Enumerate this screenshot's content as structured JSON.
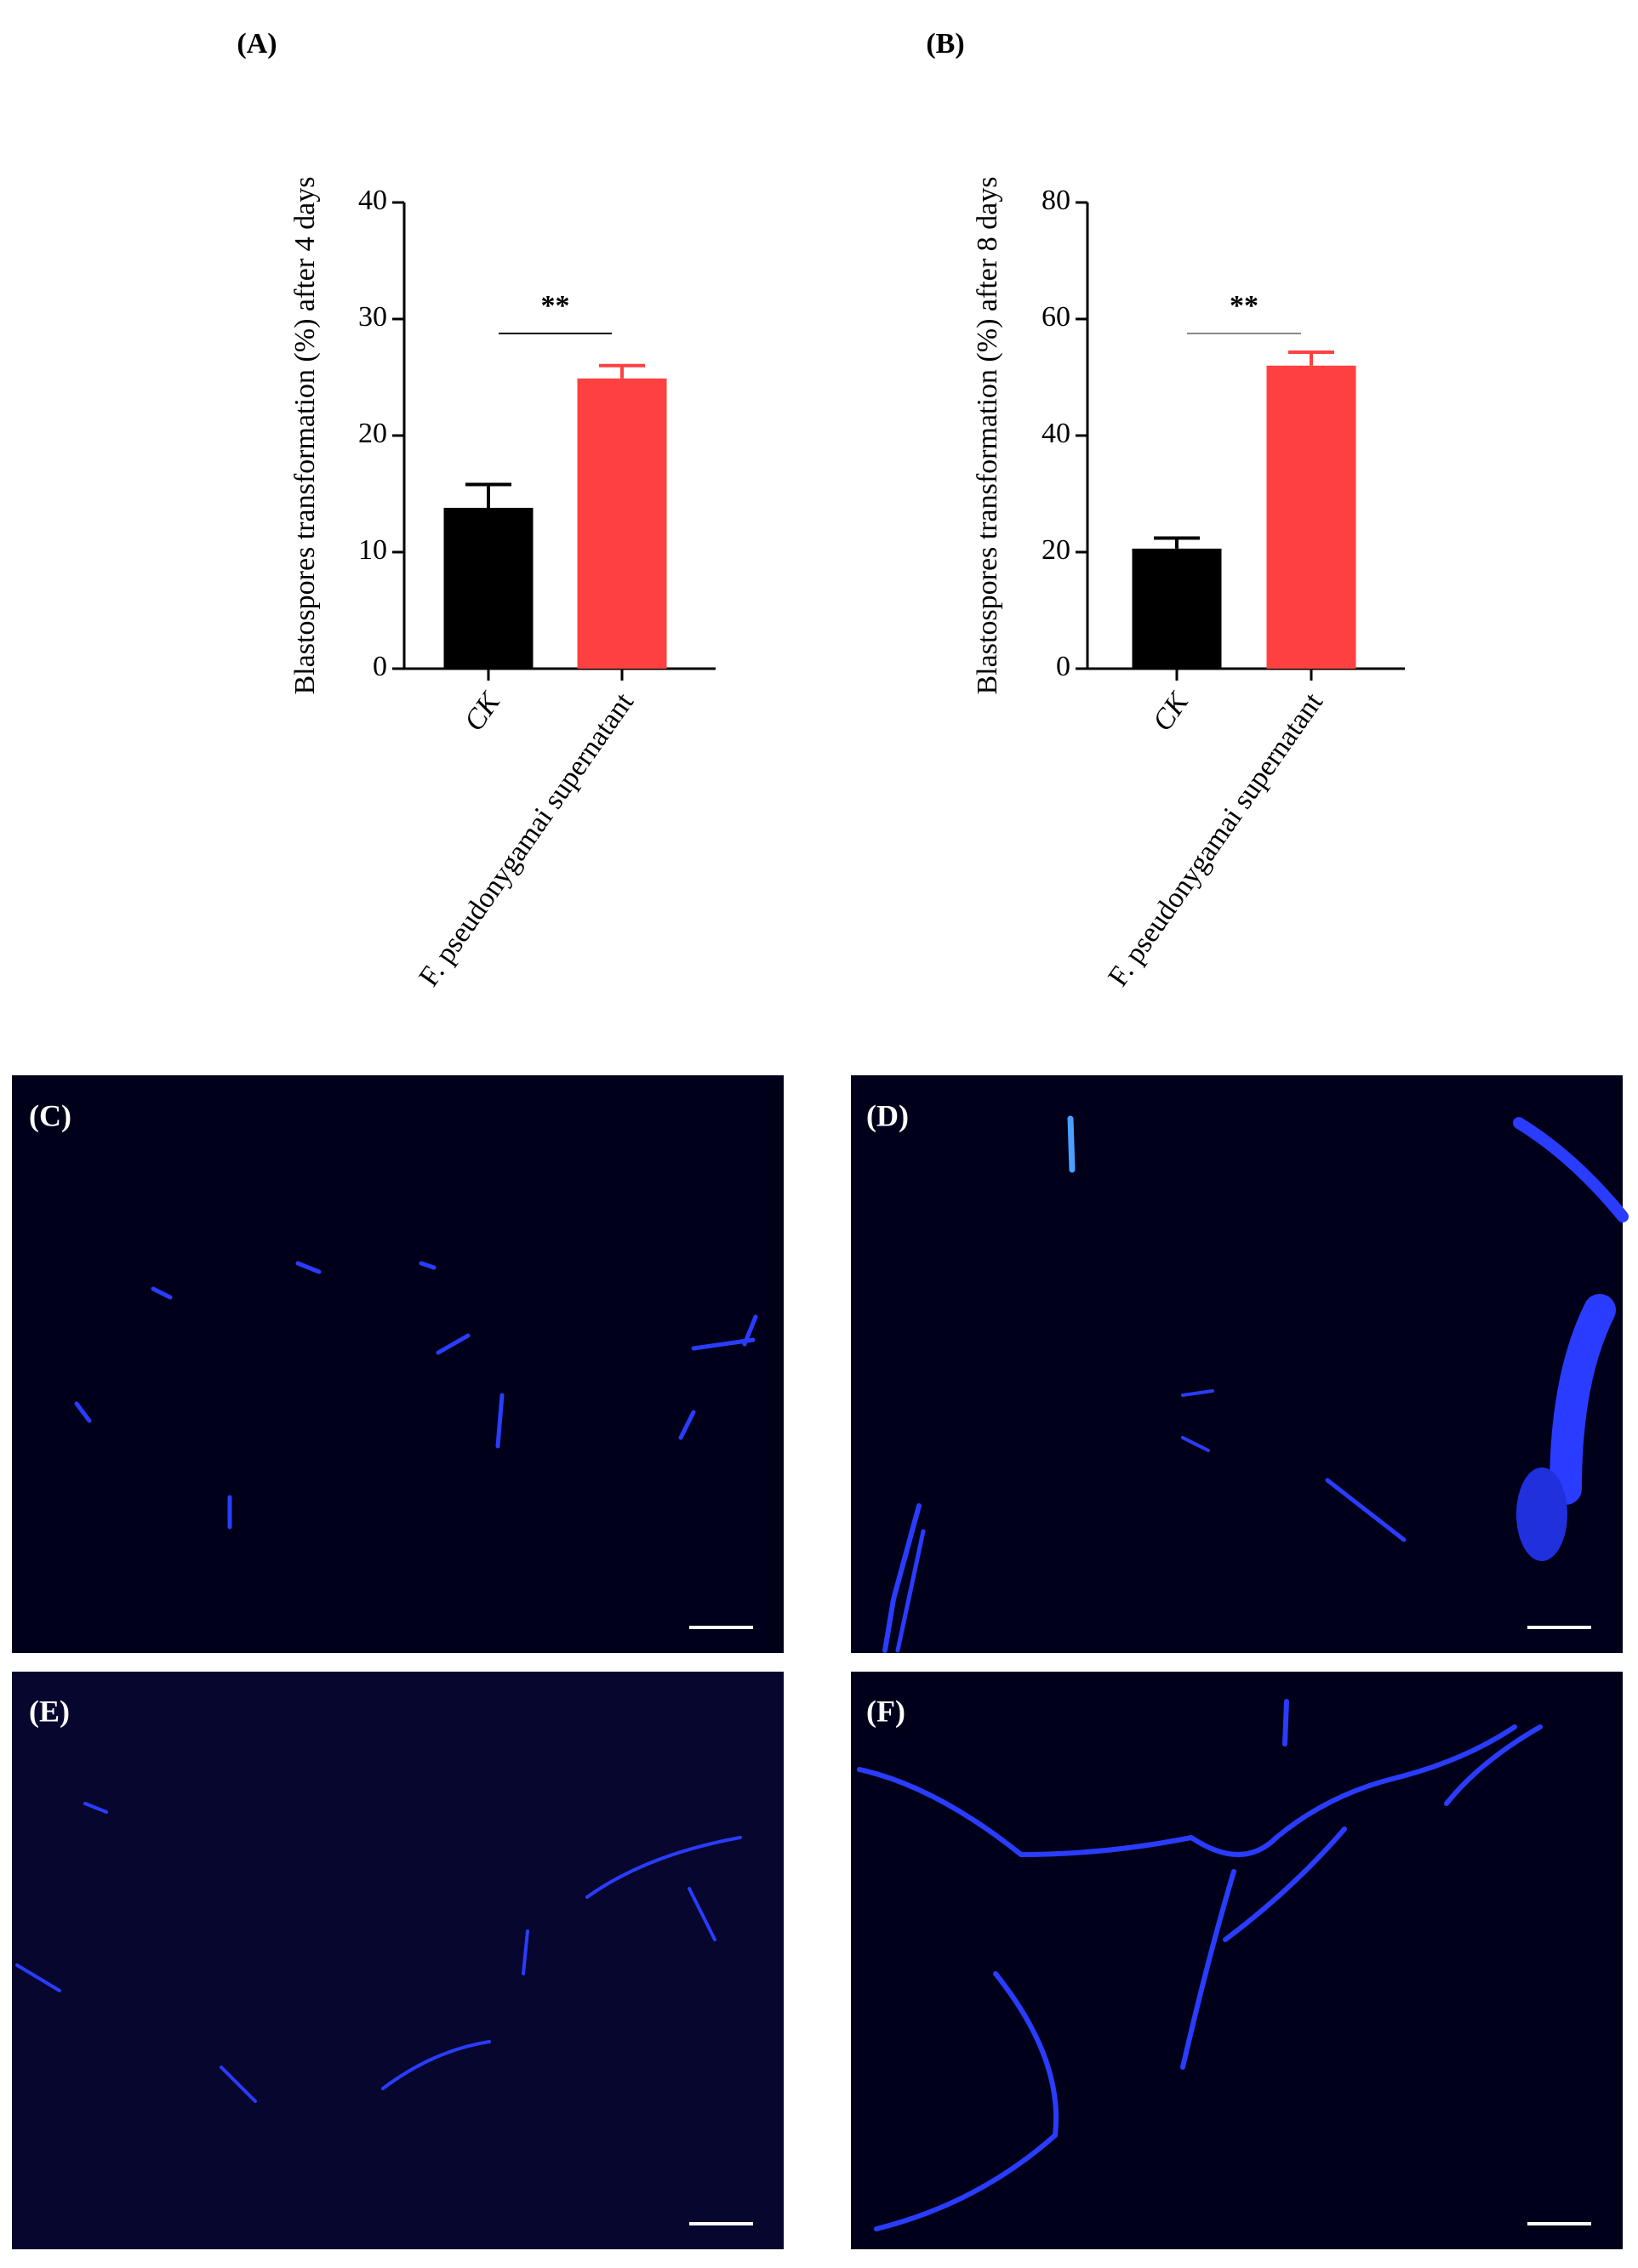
{
  "chart_data": [
    {
      "type": "bar",
      "title": "(A)",
      "ylabel": "Blastospores transformation (%) after 4 days",
      "categories": [
        "CK",
        "F. pseudonygamai supernatant"
      ],
      "series": [
        {
          "values": [
            13.8,
            24.9
          ],
          "errors": [
            2.0,
            1.1
          ],
          "colors": [
            "#000000",
            "#ff4040"
          ]
        }
      ],
      "ylim": [
        0,
        40
      ],
      "yticks": [
        0,
        10,
        20,
        30,
        40
      ],
      "significance": "**"
    },
    {
      "type": "bar",
      "title": "(B)",
      "ylabel": "Blastospores transformation (%) after 8 days",
      "categories": [
        "CK",
        "F. pseudonygamai supernatant"
      ],
      "series": [
        {
          "values": [
            20.6,
            52.0
          ],
          "errors": [
            1.8,
            2.3
          ],
          "colors": [
            "#000000",
            "#ff4040"
          ]
        }
      ],
      "ylim": [
        0,
        80
      ],
      "yticks": [
        0,
        20,
        40,
        60,
        80
      ],
      "significance": "**"
    }
  ],
  "image_panels": [
    {
      "label": "(C)"
    },
    {
      "label": "(D)"
    },
    {
      "label": "(E)"
    },
    {
      "label": "(F)"
    }
  ]
}
